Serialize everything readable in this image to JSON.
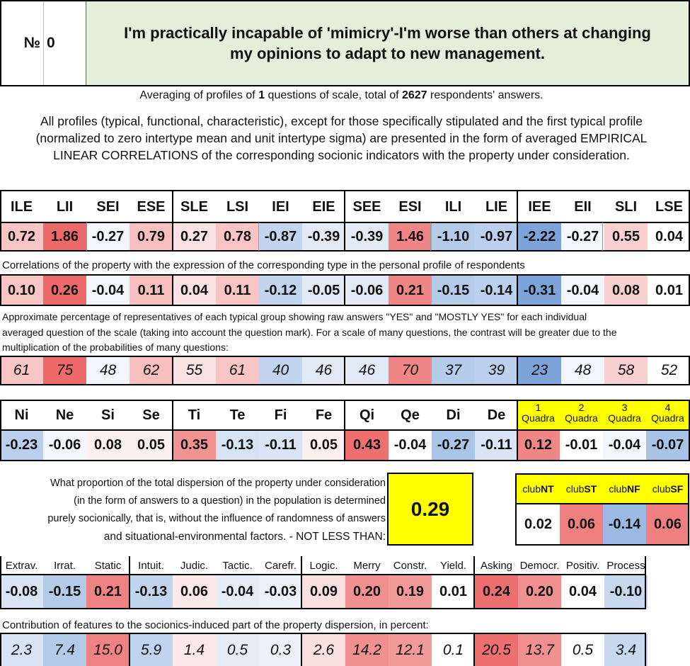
{
  "header": {
    "number_label": "№",
    "number_value": "0",
    "title_line1": "I'm practically incapable of 'mimicry'-I'm worse than others at changing",
    "title_line2": "my opinions to adapt to new management."
  },
  "summary": {
    "text_a": "Averaging of profiles of ",
    "questions": "1",
    "text_b": " questions of scale, total of ",
    "respondents": "2627",
    "text_c": " respondents' answers."
  },
  "description": {
    "line1": "All profiles (typical, functional, characteristic), except for those specifically stipulated and the first typical profile",
    "line2": "(normalized to zero intertype mean and unit intertype sigma) are presented in the form of averaged EMPIRICAL",
    "line3": "LINEAR CORRELATIONS of the corresponding socionic indicators with the property under consideration."
  },
  "types": {
    "labels": [
      "ILE",
      "LII",
      "SEI",
      "ESE",
      "SLE",
      "LSI",
      "IEI",
      "EIE",
      "SEE",
      "ESI",
      "ILI",
      "LIE",
      "IEE",
      "EII",
      "SLI",
      "LSE"
    ],
    "values": [
      "0.72",
      "1.86",
      "-0.27",
      "0.79",
      "0.27",
      "0.78",
      "-0.87",
      "-0.39",
      "-0.39",
      "1.46",
      "-1.10",
      "-0.97",
      "-2.22",
      "-0.27",
      "0.55",
      "0.04"
    ],
    "value_colors": [
      "#f8c4c4",
      "#ee6a6a",
      "#f3f6fb",
      "#f7bfbf",
      "#fbe2e2",
      "#f8c4c4",
      "#c3d5ee",
      "#e2eaf6",
      "#e2eaf6",
      "#f18686",
      "#b4cbea",
      "#bbd0ec",
      "#7ea3d8",
      "#f3f6fb",
      "#f9d0d0",
      "#ffffff"
    ],
    "corr_caption": "Correlations of the property with the expression of the corresponding type in the personal profile of respondents",
    "corr_values": [
      "0.10",
      "0.26",
      "-0.04",
      "0.11",
      "0.04",
      "0.11",
      "-0.12",
      "-0.05",
      "-0.06",
      "0.21",
      "-0.15",
      "-0.14",
      "-0.31",
      "-0.04",
      "0.08",
      "0.01"
    ],
    "pct_caption_1": "Approximate percentage of representatives of each typical group showing raw answers \"YES\" and \"MOSTLY YES\" for each individual",
    "pct_caption_2": "averaged question of the scale (taking into account the question mark). For a scale of many questions, the contrast will be greater due to the",
    "pct_caption_3": "multiplication of the probabilities of many questions:",
    "pct_values": [
      "61",
      "75",
      "48",
      "62",
      "55",
      "61",
      "40",
      "46",
      "46",
      "70",
      "37",
      "39",
      "23",
      "48",
      "58",
      "52"
    ]
  },
  "functions": {
    "labels": [
      "Ni",
      "Ne",
      "Si",
      "Se",
      "Ti",
      "Te",
      "Fi",
      "Fe",
      "Qi",
      "Qe",
      "Di",
      "De"
    ],
    "values": [
      "-0.23",
      "-0.06",
      "0.08",
      "0.05",
      "0.35",
      "-0.13",
      "-0.11",
      "0.05",
      "0.43",
      "-0.04",
      "-0.27",
      "-0.11"
    ],
    "value_colors": [
      "#b9cfec",
      "#f3f6fb",
      "#fdf0f0",
      "#fdf0f0",
      "#f19393",
      "#d6e3f3",
      "#d9e5f4",
      "#fdf0f0",
      "#ee6f6f",
      "#ffffff",
      "#aac5e8",
      "#d9e5f4"
    ]
  },
  "quadras": {
    "numbers": [
      "1",
      "2",
      "3",
      "4"
    ],
    "label": "Quadra",
    "values": [
      "0.12",
      "-0.01",
      "-0.04",
      "-0.07"
    ],
    "value_colors": [
      "#f18686",
      "#ffffff",
      "#f3f6fb",
      "#a9c3e6"
    ],
    "header_color": "#ffff00"
  },
  "dispersion": {
    "line1": "What proportion of the total dispersion of the property under consideration",
    "line2": "(in the form of answers to a question) in the population is determined",
    "line3": "purely socionically, that is, without the influence of randomness of answers",
    "line4": "and situational-environmental factors. - NOT LESS THAN:",
    "value": "0.29"
  },
  "clubs": {
    "prefix": "club",
    "suffixes": [
      "NT",
      "ST",
      "NF",
      "SF"
    ],
    "values": [
      "0.02",
      "0.06",
      "-0.14",
      "0.06"
    ],
    "value_colors": [
      "#ffffff",
      "#f08080",
      "#9bb9e2",
      "#f08080"
    ]
  },
  "traits": {
    "labels": [
      "Extrav.",
      "Irrat.",
      "Static",
      "Intuit.",
      "Judic.",
      "Tactic.",
      "Carefr.",
      "Logic.",
      "Merry",
      "Constr.",
      "Yield.",
      "Asking",
      "Democr.",
      "Positiv.",
      "Process"
    ],
    "values": [
      "-0.08",
      "-0.15",
      "0.21",
      "-0.13",
      "0.06",
      "-0.04",
      "-0.03",
      "0.09",
      "0.20",
      "0.19",
      "0.01",
      "0.24",
      "0.20",
      "0.04",
      "-0.10"
    ],
    "value_colors": [
      "#d8e4f3",
      "#b3cae9",
      "#ef8383",
      "#c1d4ed",
      "#fbe9e9",
      "#e6edf7",
      "#ecf1f9",
      "#fbe0e0",
      "#f19090",
      "#f29a9a",
      "#ffffff",
      "#ee6f6f",
      "#f19090",
      "#ffffff",
      "#c7d8ef"
    ],
    "contrib_caption": "Contribution of features to the socionics-induced part of the property dispersion, in percent:",
    "contrib_values": [
      "2.3",
      "7.4",
      "15.0",
      "5.9",
      "1.4",
      "0.5",
      "0.3",
      "2.6",
      "14.2",
      "12.1",
      "0.1",
      "20.5",
      "13.7",
      "0.5",
      "3.4"
    ]
  }
}
